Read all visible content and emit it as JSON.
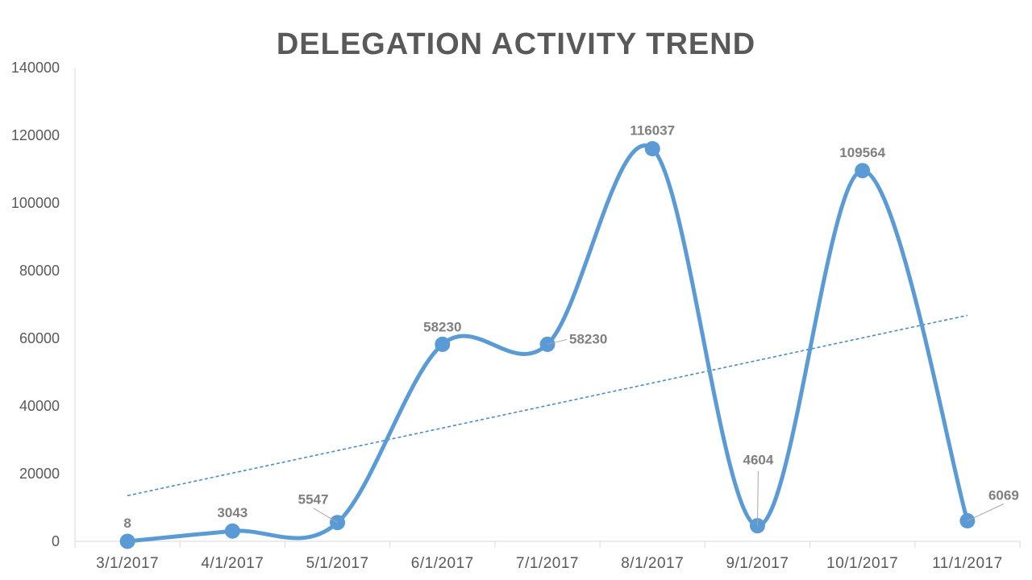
{
  "chart_data": {
    "type": "line",
    "title": "DELEGATION ACTIVITY TREND",
    "xlabel": "",
    "ylabel": "",
    "categories": [
      "3/1/2017",
      "4/1/2017",
      "5/1/2017",
      "6/1/2017",
      "7/1/2017",
      "8/1/2017",
      "9/1/2017",
      "10/1/2017",
      "11/1/2017"
    ],
    "series": [
      {
        "values": [
          8,
          3043,
          5547,
          58230,
          58230,
          116037,
          4604,
          109564,
          6069
        ]
      }
    ],
    "data_labels": [
      "8",
      "3043",
      "5547",
      "58230",
      "58230",
      "116037",
      "4604",
      "109564",
      "6069"
    ],
    "ylim": [
      0,
      140000
    ],
    "yticks": [
      "0",
      "20000",
      "40000",
      "60000",
      "80000",
      "100000",
      "120000",
      "140000"
    ],
    "trendline": "linear",
    "grid": false,
    "legend": "none",
    "colors": {
      "series": "#5b9bd5",
      "trend": "#4a8cc4",
      "text": "#595959",
      "label": "#7f7f7f",
      "axis": "#d9d9d9"
    }
  }
}
